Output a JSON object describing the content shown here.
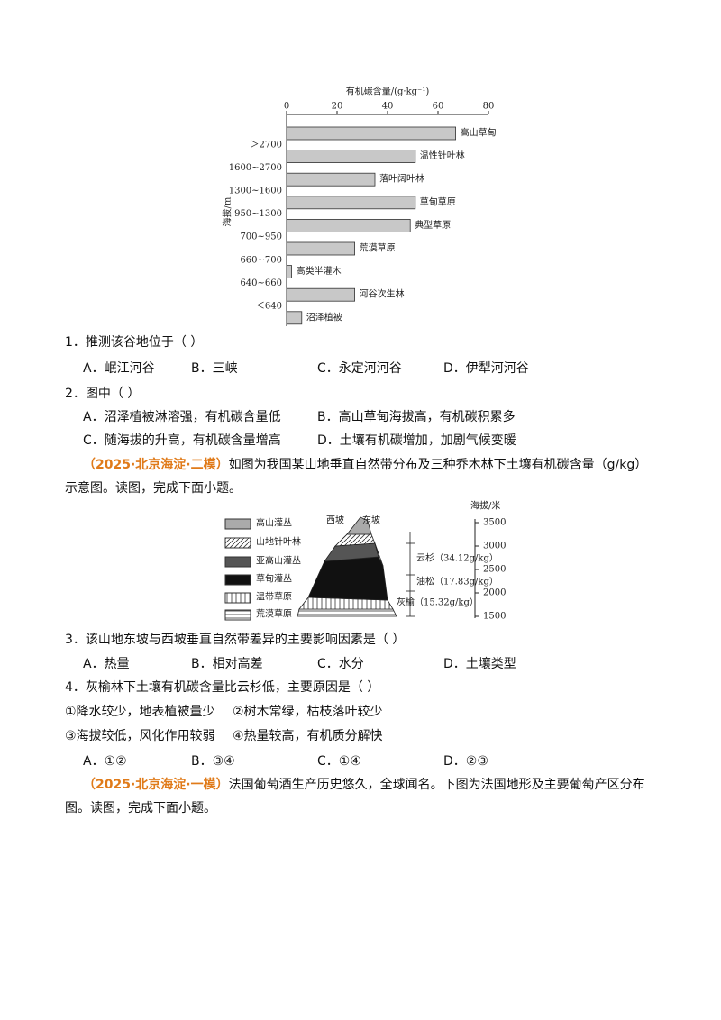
{
  "chart_data": {
    "type": "bar",
    "orientation": "horizontal",
    "xlabel": "有机碳含量/(g·kg⁻¹)",
    "ylabel": "海拔/m",
    "categories": [
      "高山草甸",
      "温性针叶林",
      "落叶阔叶林",
      "草甸草原",
      "典型草原",
      "荒漠草原",
      "高类半灌木",
      "河谷次生林",
      "沼泽植被"
    ],
    "values": [
      67,
      51,
      35,
      51,
      49,
      27,
      2,
      27,
      6
    ],
    "color": "#c8c8c8",
    "xlim": [
      0,
      80
    ],
    "xticks": [
      0,
      20,
      40,
      60,
      80
    ],
    "elevation_labels": [
      "＞2700",
      "1600~2700",
      "1300~1600",
      "950~1300",
      "700~950",
      "660~700",
      "640~660",
      "＜640"
    ]
  },
  "questions": [
    {
      "stem": "1．推测该谷地位于（ ）",
      "options": [
        "A．岷江河谷",
        "B．三峡",
        "C．永定河河谷",
        "D．伊犁河河谷"
      ]
    },
    {
      "stem": "2．图中（ ）",
      "options": [
        "A．沼泽植被淋溶强，有机碳含量低",
        "B．高山草甸海拔高，有机碳积累多",
        "C．随海拔的升高，有机碳含量增高",
        "D．土壤有机碳增加，加剧气候变暖"
      ]
    },
    {
      "stem": "3．该山地东坡与西坡垂直自然带差异的主要影响因素是（ ）",
      "options": [
        "A．热量",
        "B．相对高差",
        "C．水分",
        "D．土壤类型"
      ]
    },
    {
      "stem": "4．灰榆林下土壤有机碳含量比云杉低，主要原因是（ ）",
      "statements": [
        "①降水较少，地表植被量少",
        "②树木常绿，枯枝落叶较少",
        "③海拔较低，风化作用较弱",
        "④热量较高，有机质分解快"
      ],
      "options": [
        "A．①②",
        "B．③④",
        "C．①④",
        "D．②③"
      ]
    }
  ],
  "intro2": {
    "source": "（2025·北京海淀·二模）",
    "text": "如图为我国某山地垂直自然带分布及三种乔木林下土壤有机碳含量（g/kg）示意图。读图，完成下面小题。"
  },
  "figure2": {
    "legend": [
      "高山灌丛",
      "山地针叶林",
      "亚高山灌丛",
      "草甸灌丛",
      "温带草原",
      "荒漠草原"
    ],
    "west": "西坡",
    "east": "东坡",
    "ylabel": "海拔/米",
    "yticks": [
      3500,
      3000,
      2500,
      2000,
      1500
    ],
    "annotations": [
      "云杉（34.12g/kg）",
      "油松（17.83g/kg）",
      "灰榆（15.32g/kg）"
    ]
  },
  "intro3": {
    "source": "（2025·北京海淀·一模）",
    "text": "法国葡萄酒生产历史悠久，全球闻名。下图为法国地形及主要葡萄产区分布图。读图，完成下面小题。"
  }
}
